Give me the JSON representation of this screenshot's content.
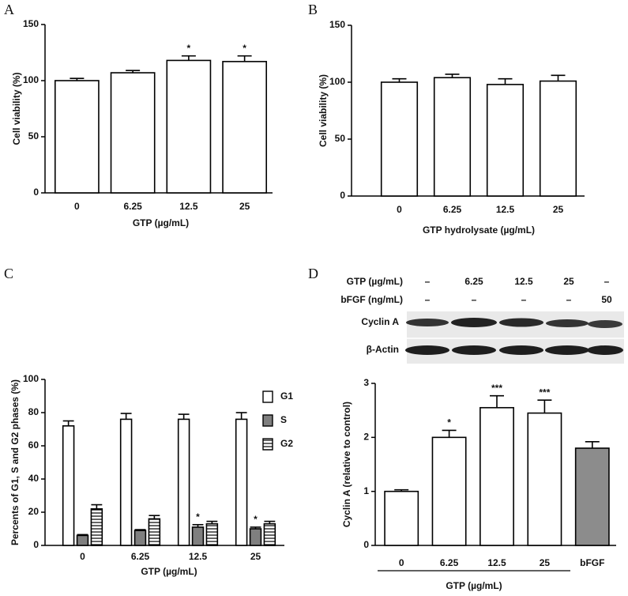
{
  "chart_data": [
    {
      "type": "bar",
      "panel": "A",
      "categories": [
        "0",
        "6.25",
        "12.5",
        "25"
      ],
      "values": [
        100,
        107,
        118,
        117
      ],
      "errors": [
        2,
        2,
        4,
        5
      ],
      "significance": [
        null,
        null,
        "*",
        "*"
      ],
      "color": "#ffffff",
      "xlabel": "GTP (µg/mL)",
      "ylabel": "Cell viability (%)",
      "ylim": [
        0,
        150
      ],
      "yticks": [
        0,
        50,
        100,
        150
      ]
    },
    {
      "type": "bar",
      "panel": "B",
      "categories": [
        "0",
        "6.25",
        "12.5",
        "25"
      ],
      "values": [
        100,
        104,
        98,
        101
      ],
      "errors": [
        3,
        3,
        5,
        5
      ],
      "color": "#ffffff",
      "xlabel": "GTP hydrolysate (µg/mL)",
      "ylabel": "Cell viability (%)",
      "ylim": [
        0,
        150
      ],
      "yticks": [
        0,
        50,
        100,
        150
      ]
    },
    {
      "type": "grouped-bar",
      "panel": "C",
      "categories": [
        "0",
        "6.25",
        "12.5",
        "25"
      ],
      "series": [
        {
          "name": "G1",
          "color": "#ffffff",
          "values": [
            72,
            76,
            76,
            76
          ],
          "errors": [
            3,
            3.5,
            3,
            4
          ]
        },
        {
          "name": "S",
          "color": "#7f7f7f",
          "values": [
            6,
            9,
            11,
            10
          ],
          "errors": [
            0.5,
            0.5,
            1.5,
            1
          ],
          "significance": [
            null,
            null,
            "*",
            "*"
          ]
        },
        {
          "name": "G2",
          "color": "#ffffff",
          "hatch": true,
          "values": [
            22,
            16,
            13,
            13
          ],
          "errors": [
            2.5,
            2,
            1.5,
            1.5
          ]
        }
      ],
      "legend": "upper right",
      "xlabel": "GTP (µg/mL)",
      "ylabel": "Percents of G1, S and G2 phases (%)",
      "ylim": [
        0,
        100
      ],
      "yticks": [
        0,
        20,
        40,
        60,
        80,
        100
      ]
    },
    {
      "type": "bar",
      "panel": "D",
      "categories": [
        "0",
        "6.25",
        "12.5",
        "25",
        "bFGF"
      ],
      "values": [
        1.0,
        2.0,
        2.55,
        2.45,
        1.8
      ],
      "errors": [
        0.03,
        0.13,
        0.22,
        0.24,
        0.12
      ],
      "significance": [
        null,
        "*",
        "***",
        "***",
        null
      ],
      "colors": [
        "#ffffff",
        "#ffffff",
        "#ffffff",
        "#ffffff",
        "#8c8c8c"
      ],
      "xlabel": "GTP (µg/mL)",
      "ylabel": "Cyclin A (relative to control)",
      "ylim": [
        0,
        3
      ],
      "yticks": [
        0,
        1,
        2,
        3
      ],
      "blot": {
        "rows": [
          {
            "label": "GTP (µg/mL)",
            "values": [
              "–",
              "6.25",
              "12.5",
              "25",
              "–"
            ]
          },
          {
            "label": "bFGF (ng/mL)",
            "values": [
              "–",
              "–",
              "–",
              "–",
              "50"
            ]
          }
        ],
        "bands": [
          "Cyclin A",
          "β-Actin"
        ]
      }
    }
  ]
}
